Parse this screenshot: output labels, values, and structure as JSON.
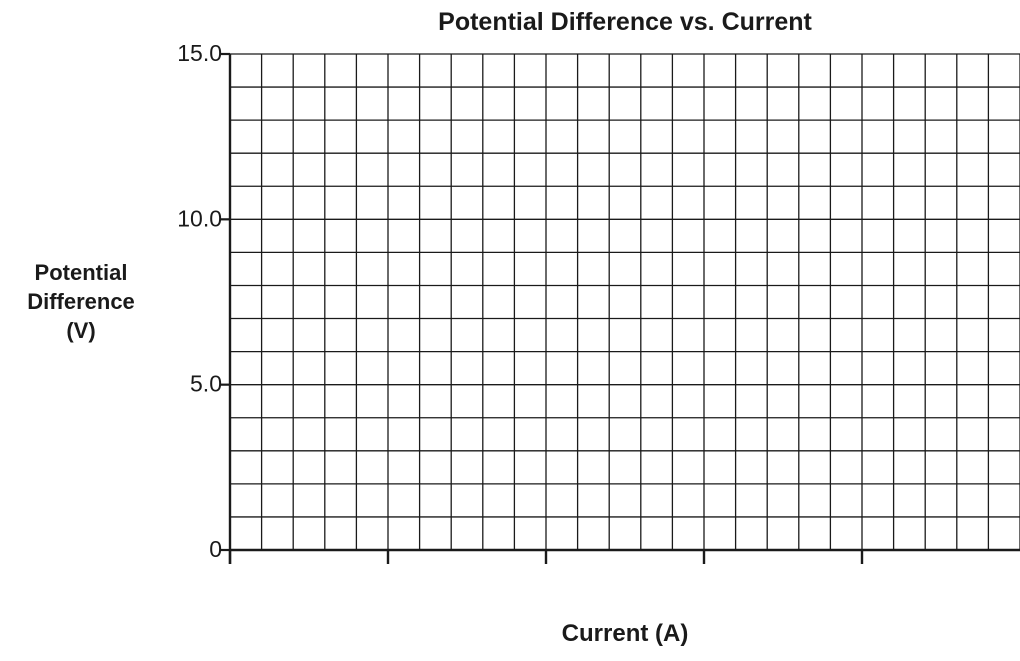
{
  "chart_data": {
    "type": "line",
    "title": "Potential Difference vs. Current",
    "xlabel": "Current (A)",
    "ylabel_lines": [
      "Potential",
      "Difference",
      "(V)"
    ],
    "ylim": [
      0,
      15.0
    ],
    "yticks": [
      {
        "value": 0,
        "label": "0"
      },
      {
        "value": 5.0,
        "label": "5.0"
      },
      {
        "value": 10.0,
        "label": "10.0"
      },
      {
        "value": 15.0,
        "label": "15.0"
      }
    ],
    "y_minor_step": 1.0,
    "x_major_ticks": 5,
    "x_minor_per_major": 5,
    "x_tick_labels": [],
    "grid": true,
    "series": [],
    "colors": {
      "grid": "#1a1a1a",
      "axis": "#1a1a1a",
      "text": "#1a1a1a"
    }
  }
}
